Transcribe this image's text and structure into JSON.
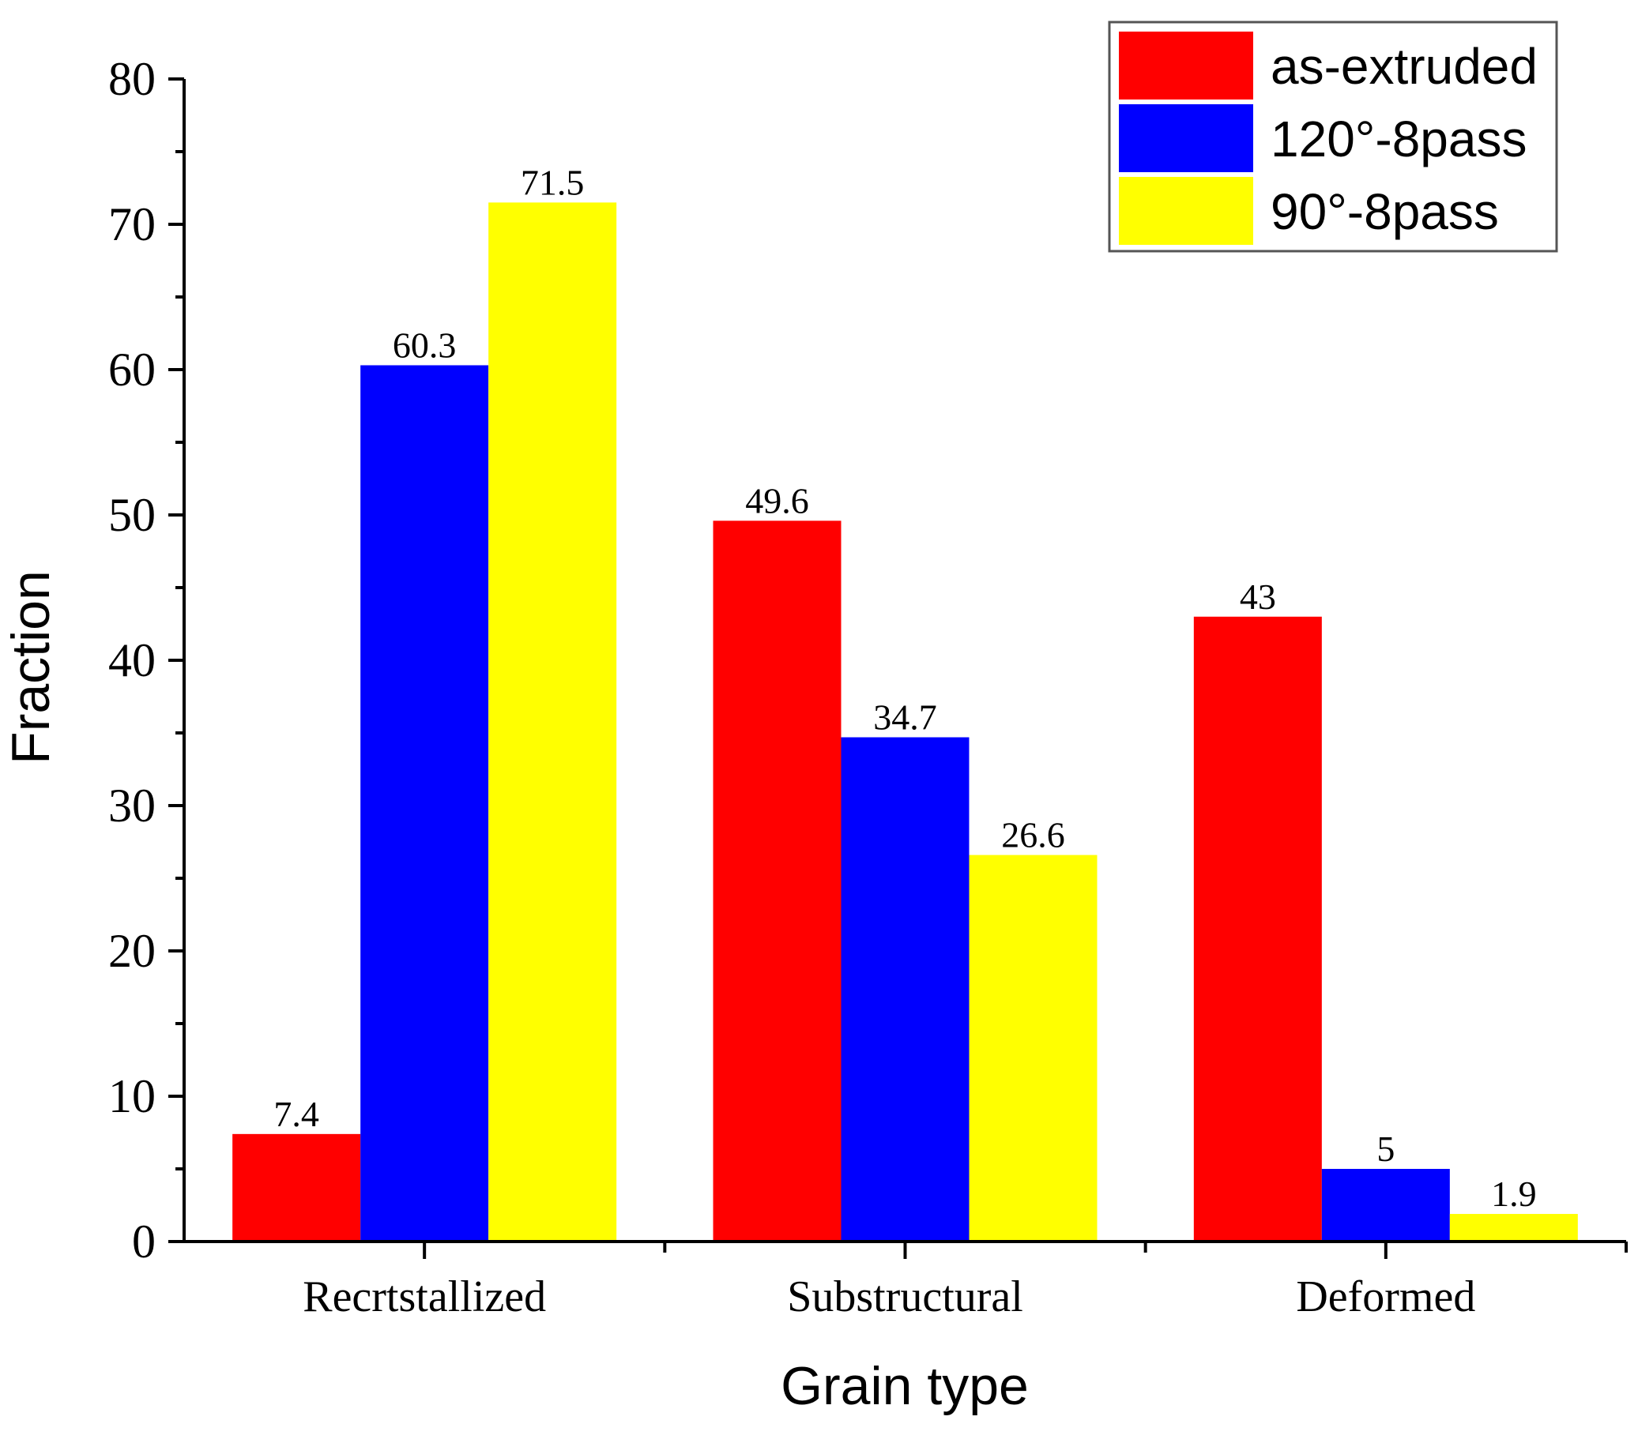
{
  "chart_data": {
    "type": "bar",
    "title": "",
    "xlabel": "Grain type",
    "ylabel": "Fraction",
    "ylim": [
      0,
      80
    ],
    "yticks": [
      "0",
      "10",
      "20",
      "30",
      "40",
      "50",
      "60",
      "70",
      "80"
    ],
    "grid": false,
    "legend_position": "top-right",
    "categories": [
      "Recrtstallized",
      "Substructural",
      "Deformed"
    ],
    "series": [
      {
        "name": "as-extruded",
        "color": "#ff0000",
        "values": [
          7.4,
          49.6,
          43
        ],
        "labels": [
          "7.4",
          "49.6",
          "43"
        ]
      },
      {
        "name": "120°-8pass",
        "color": "#0000ff",
        "values": [
          60.3,
          34.7,
          5
        ],
        "labels": [
          "60.3",
          "34.7",
          "5"
        ]
      },
      {
        "name": "90°-8pass",
        "color": "#ffff00",
        "values": [
          71.5,
          26.6,
          1.9
        ],
        "labels": [
          "71.5",
          "26.6",
          "1.9"
        ]
      }
    ]
  }
}
